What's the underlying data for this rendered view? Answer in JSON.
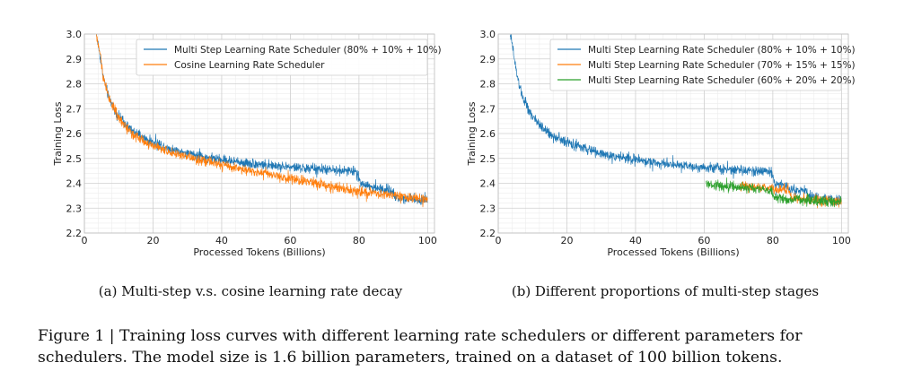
{
  "figure": {
    "caption": "Figure 1 | Training loss curves with different learning rate schedulers or different parameters for schedulers. The model size is 1.6 billion parameters, trained on a dataset of 100 billion tokens."
  },
  "chart_data": [
    {
      "id": "a",
      "type": "line",
      "subcaption": "(a) Multi-step v.s. cosine learning rate decay",
      "title": "",
      "xlabel": "Processed Tokens (Billions)",
      "ylabel": "Training Loss",
      "xlim": [
        0,
        102
      ],
      "ylim": [
        2.2,
        3.0
      ],
      "xticks": [
        0,
        20,
        40,
        60,
        80,
        100
      ],
      "xtick_labels": [
        "0",
        "20",
        "40",
        "60",
        "80",
        "100"
      ],
      "yticks": [
        2.2,
        2.3,
        2.4,
        2.5,
        2.6,
        2.7,
        2.8,
        2.9,
        3.0
      ],
      "ytick_labels": [
        "2.2",
        "2.3",
        "2.4",
        "2.5",
        "2.6",
        "2.7",
        "2.8",
        "2.9",
        "3.0"
      ],
      "grid": true,
      "legend_position": "top-right",
      "series": [
        {
          "name": "Multi Step Learning Rate Scheduler (80% + 10% + 10%)",
          "color": "#1f77b4",
          "x": [
            3.5,
            4.5,
            5.5,
            7,
            9,
            11,
            14,
            18,
            22,
            26,
            30,
            35,
            40,
            45,
            50,
            55,
            60,
            65,
            70,
            75,
            79.5,
            80.5,
            85,
            89.5,
            90.5,
            95,
            100
          ],
          "y": [
            3.0,
            2.92,
            2.83,
            2.75,
            2.69,
            2.65,
            2.61,
            2.575,
            2.555,
            2.535,
            2.52,
            2.505,
            2.495,
            2.485,
            2.478,
            2.47,
            2.465,
            2.46,
            2.455,
            2.45,
            2.448,
            2.4,
            2.38,
            2.37,
            2.345,
            2.338,
            2.33
          ],
          "noise": 0.018
        },
        {
          "name": "Cosine Learning Rate Scheduler",
          "color": "#ff7f0e",
          "x": [
            3.5,
            4.5,
            5.5,
            7,
            9,
            11,
            14,
            18,
            22,
            26,
            30,
            35,
            40,
            45,
            50,
            55,
            60,
            65,
            70,
            75,
            80,
            85,
            90,
            95,
            100
          ],
          "y": [
            3.0,
            2.92,
            2.83,
            2.75,
            2.69,
            2.645,
            2.6,
            2.565,
            2.54,
            2.52,
            2.505,
            2.49,
            2.475,
            2.46,
            2.445,
            2.432,
            2.42,
            2.405,
            2.392,
            2.38,
            2.368,
            2.358,
            2.35,
            2.343,
            2.335
          ],
          "noise": 0.018
        }
      ]
    },
    {
      "id": "b",
      "type": "line",
      "subcaption": "(b) Different proportions of multi-step stages",
      "title": "",
      "xlabel": "Processed Tokens (Billions)",
      "ylabel": "Training Loss",
      "xlim": [
        0,
        102
      ],
      "ylim": [
        2.2,
        3.0
      ],
      "xticks": [
        0,
        20,
        40,
        60,
        80,
        100
      ],
      "xtick_labels": [
        "0",
        "20",
        "40",
        "60",
        "80",
        "100"
      ],
      "yticks": [
        2.2,
        2.3,
        2.4,
        2.5,
        2.6,
        2.7,
        2.8,
        2.9,
        3.0
      ],
      "ytick_labels": [
        "2.2",
        "2.3",
        "2.4",
        "2.5",
        "2.6",
        "2.7",
        "2.8",
        "2.9",
        "3.0"
      ],
      "grid": true,
      "legend_position": "top-right",
      "series": [
        {
          "name": "Multi Step Learning Rate Scheduler (80% + 10% + 10%)",
          "color": "#1f77b4",
          "x": [
            3.5,
            4.5,
            5.5,
            7,
            9,
            11,
            14,
            18,
            22,
            26,
            30,
            35,
            40,
            45,
            50,
            55,
            60,
            65,
            70,
            75,
            79.5,
            80.5,
            85,
            89.5,
            90.5,
            95,
            100
          ],
          "y": [
            3.0,
            2.92,
            2.83,
            2.75,
            2.69,
            2.65,
            2.61,
            2.575,
            2.555,
            2.535,
            2.52,
            2.505,
            2.495,
            2.485,
            2.478,
            2.47,
            2.465,
            2.46,
            2.455,
            2.45,
            2.448,
            2.4,
            2.38,
            2.37,
            2.345,
            2.338,
            2.33
          ],
          "noise": 0.018
        },
        {
          "name": "Multi Step Learning Rate Scheduler (70% + 15% + 15%)",
          "color": "#ff7f0e",
          "x": [
            70.5,
            75,
            80,
            84.5,
            85.5,
            90,
            95,
            100
          ],
          "y": [
            2.39,
            2.385,
            2.378,
            2.372,
            2.34,
            2.336,
            2.332,
            2.328
          ],
          "noise": 0.018
        },
        {
          "name": "Multi Step Learning Rate Scheduler (60% + 20% + 20%)",
          "color": "#2ca02c",
          "x": [
            60.5,
            65,
            70,
            75,
            79.5,
            80.5,
            85,
            90,
            95,
            100
          ],
          "y": [
            2.4,
            2.39,
            2.383,
            2.378,
            2.373,
            2.34,
            2.336,
            2.332,
            2.328,
            2.325
          ],
          "noise": 0.018
        }
      ]
    }
  ]
}
